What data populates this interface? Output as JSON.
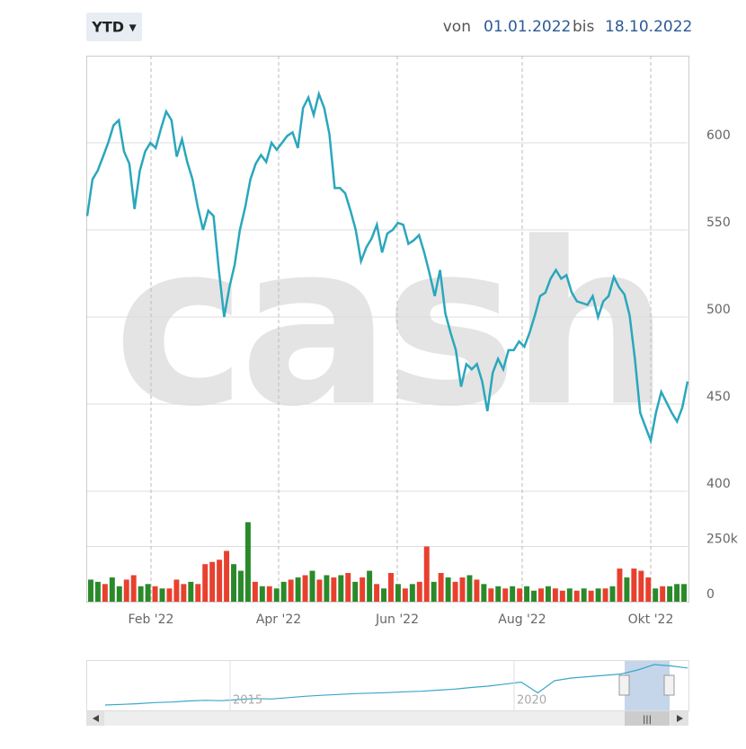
{
  "header": {
    "range_button": "YTD ▾",
    "from_label": "von",
    "from": "01.01.2022",
    "to_label": "bis",
    "to": "18.10.2022"
  },
  "chart_data": {
    "type": "line",
    "watermark": "cash",
    "series": [
      {
        "color": "#2aa7bc",
        "values": [
          558,
          579,
          584,
          592,
          600,
          610,
          613,
          595,
          588,
          562,
          584,
          595,
          600,
          597,
          608,
          618,
          613,
          592,
          602,
          589,
          579,
          563,
          550,
          561,
          558,
          527,
          500,
          517,
          530,
          550,
          563,
          579,
          588,
          593,
          589,
          600,
          596,
          600,
          604,
          606,
          597,
          620,
          626,
          616,
          628,
          620,
          605,
          574,
          574,
          571,
          561,
          550,
          532,
          540,
          545,
          553,
          537,
          548,
          550,
          554,
          553,
          542,
          544,
          547,
          537,
          525,
          512,
          527,
          502,
          491,
          481,
          460,
          473,
          470,
          473,
          463,
          446,
          468,
          476,
          470,
          481,
          481,
          486,
          483,
          491,
          501,
          512,
          514,
          522,
          527,
          522,
          524,
          514,
          509,
          508,
          507,
          512,
          500,
          509,
          512,
          523,
          517,
          513,
          501,
          476,
          445,
          437,
          429,
          445,
          457,
          451,
          445,
          440,
          448,
          463
        ]
      }
    ],
    "ylim": [
      400,
      650
    ],
    "yticks": [
      400,
      450,
      500,
      550,
      600
    ],
    "volume": {
      "values": [
        100000,
        90000,
        80000,
        110000,
        70000,
        100000,
        120000,
        70000,
        80000,
        70000,
        60000,
        60000,
        100000,
        80000,
        90000,
        80000,
        170000,
        180000,
        190000,
        230000,
        170000,
        140000,
        360000,
        90000,
        70000,
        70000,
        60000,
        90000,
        100000,
        110000,
        120000,
        140000,
        100000,
        120000,
        110000,
        120000,
        130000,
        90000,
        110000,
        140000,
        80000,
        60000,
        130000,
        80000,
        60000,
        80000,
        90000,
        250000,
        90000,
        130000,
        110000,
        90000,
        110000,
        120000,
        100000,
        80000,
        60000,
        70000,
        60000,
        70000,
        60000,
        70000,
        50000,
        60000,
        70000,
        60000,
        50000,
        60000,
        50000,
        60000,
        50000,
        60000,
        60000,
        70000,
        150000,
        110000,
        150000,
        140000,
        110000,
        60000,
        70000,
        70000,
        80000,
        80000
      ],
      "colors": [
        "#2a8a2a",
        "#2a8a2a",
        "#e8402f",
        "#2a8a2a",
        "#2a8a2a",
        "#e8402f",
        "#e8402f",
        "#2a8a2a",
        "#2a8a2a",
        "#e8402f",
        "#2a8a2a",
        "#e8402f",
        "#e8402f",
        "#e8402f",
        "#2a8a2a",
        "#e8402f",
        "#e8402f",
        "#e8402f",
        "#e8402f",
        "#e8402f",
        "#2a8a2a",
        "#2a8a2a",
        "#2a8a2a",
        "#e8402f",
        "#2a8a2a",
        "#e8402f",
        "#2a8a2a",
        "#2a8a2a",
        "#e8402f",
        "#2a8a2a",
        "#e8402f",
        "#2a8a2a",
        "#e8402f",
        "#2a8a2a",
        "#e8402f",
        "#2a8a2a",
        "#e8402f",
        "#2a8a2a",
        "#e8402f",
        "#2a8a2a",
        "#e8402f",
        "#2a8a2a",
        "#e8402f",
        "#2a8a2a",
        "#e8402f",
        "#2a8a2a",
        "#e8402f",
        "#e8402f",
        "#2a8a2a",
        "#e8402f",
        "#2a8a2a",
        "#e8402f",
        "#e8402f",
        "#2a8a2a",
        "#e8402f",
        "#2a8a2a",
        "#e8402f",
        "#2a8a2a",
        "#e8402f",
        "#2a8a2a",
        "#e8402f",
        "#2a8a2a",
        "#2a8a2a",
        "#e8402f",
        "#2a8a2a",
        "#e8402f",
        "#e8402f",
        "#2a8a2a",
        "#e8402f",
        "#2a8a2a",
        "#e8402f",
        "#2a8a2a",
        "#e8402f",
        "#2a8a2a",
        "#e8402f",
        "#2a8a2a",
        "#e8402f",
        "#e8402f",
        "#e8402f",
        "#2a8a2a",
        "#e8402f",
        "#2a8a2a",
        "#2a8a2a",
        "#2a8a2a"
      ],
      "ylim": [
        0,
        500000
      ],
      "yticks": [
        0,
        {
          "value": 250000,
          "label": "250k"
        }
      ]
    },
    "xtick_labels": [
      "Feb '22",
      "Apr '22",
      "Jun '22",
      "Aug '22",
      "Okt '22"
    ],
    "navigator": {
      "labels": [
        "2015",
        "2020"
      ],
      "values": [
        300,
        305,
        310,
        318,
        322,
        330,
        335,
        332,
        340,
        348,
        345,
        355,
        365,
        372,
        378,
        385,
        388,
        392,
        398,
        402,
        410,
        418,
        430,
        440,
        455,
        470,
        390,
        480,
        500,
        510,
        520,
        530,
        560,
        600,
        590,
        575
      ]
    }
  }
}
